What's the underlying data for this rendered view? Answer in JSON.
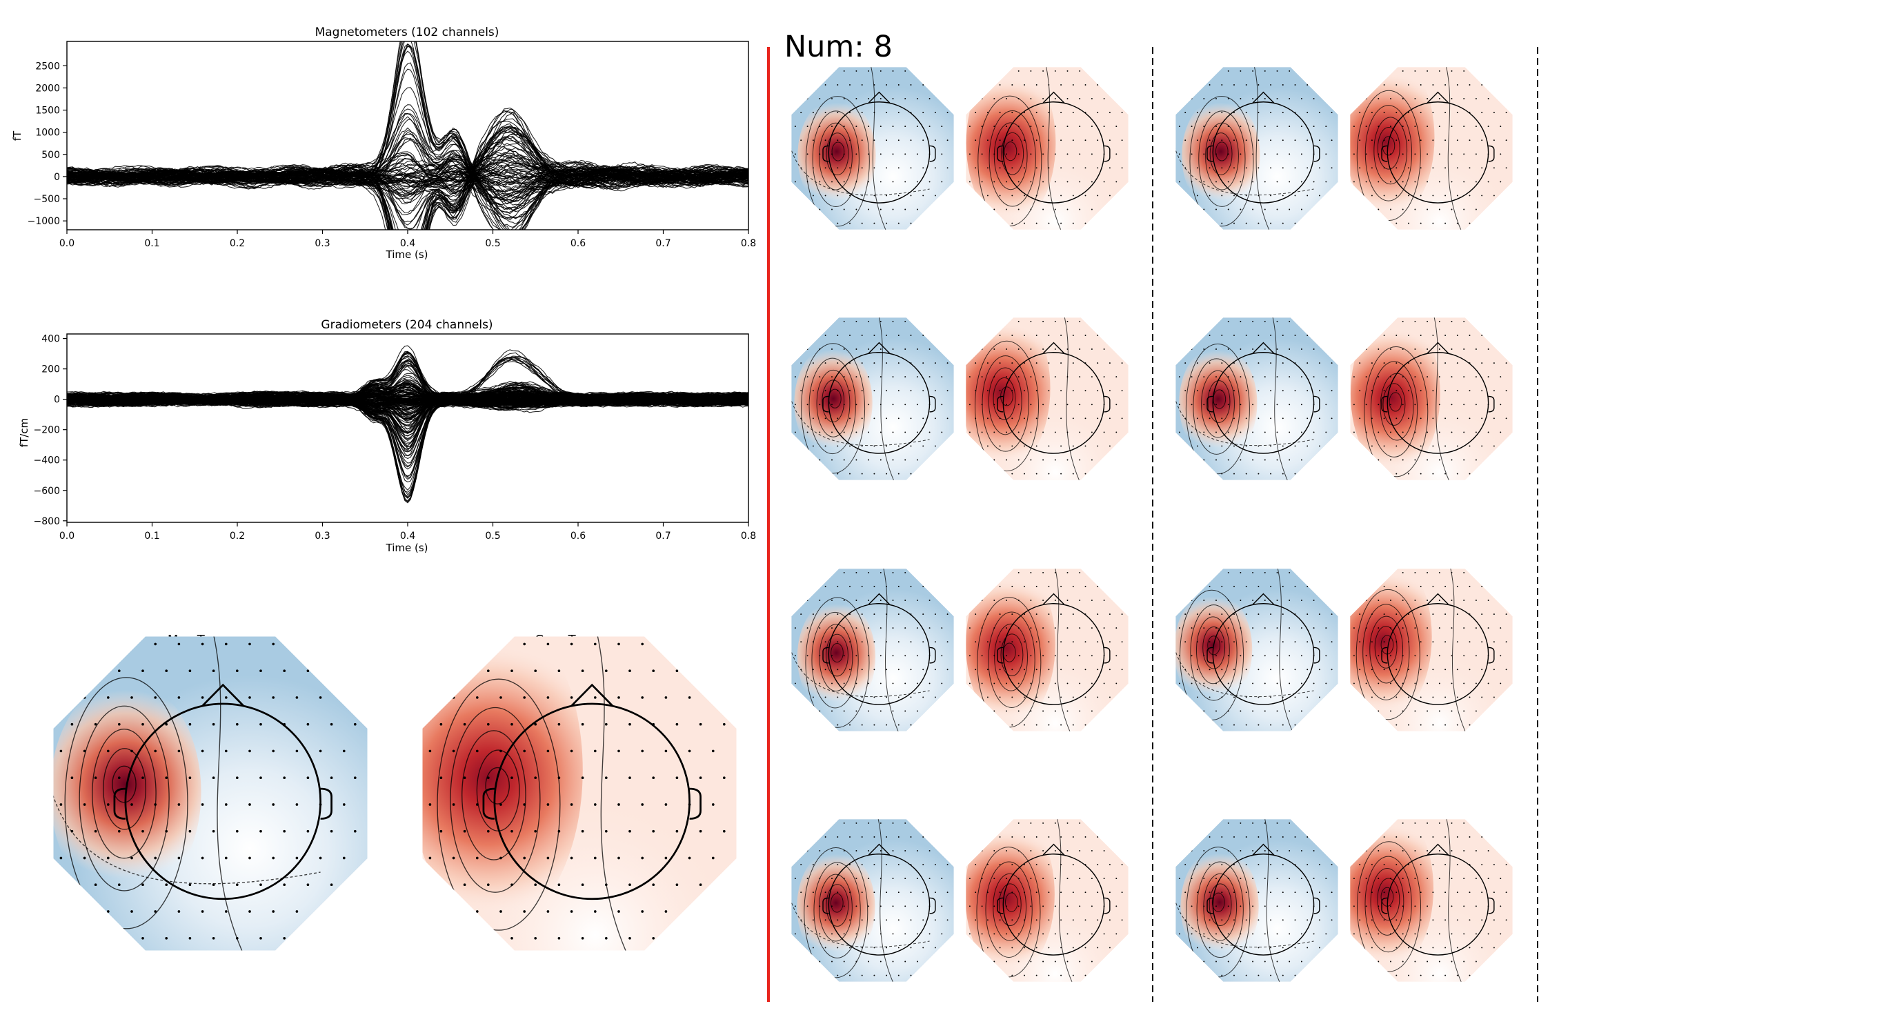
{
  "header": {
    "num_label": "Num: 8"
  },
  "colors": {
    "accent_line": "#e8241c",
    "trace": "#000000",
    "divider": "#000000",
    "topo_red": "#67001f",
    "topo_blue": "#2166ac"
  },
  "chart_data": [
    {
      "type": "line",
      "title": "Magnetometers (102 channels)",
      "xlabel": "Time (s)",
      "ylabel": "fT",
      "xlim": [
        0.0,
        0.8
      ],
      "ylim": [
        -1200,
        3050
      ],
      "x_ticks": [
        "0.0",
        "0.1",
        "0.2",
        "0.3",
        "0.4",
        "0.5",
        "0.6",
        "0.7",
        "0.8"
      ],
      "y_ticks": [
        "-1000",
        "-500",
        "0",
        "500",
        "1000",
        "1500",
        "2000",
        "2500"
      ],
      "series_count": 102,
      "peak": {
        "x": 0.4,
        "y": 2800
      },
      "trough": {
        "x": 0.52,
        "y": -1050
      }
    },
    {
      "type": "line",
      "title": "Gradiometers (204 channels)",
      "xlabel": "Time (s)",
      "ylabel": "fT/cm",
      "xlim": [
        0.0,
        0.8
      ],
      "ylim": [
        -810,
        430
      ],
      "x_ticks": [
        "0.0",
        "0.1",
        "0.2",
        "0.3",
        "0.4",
        "0.5",
        "0.6",
        "0.7",
        "0.8"
      ],
      "y_ticks": [
        "-800",
        "-600",
        "-400",
        "-200",
        "0",
        "200",
        "400"
      ],
      "series_count": 204,
      "peak": {
        "x": 0.4,
        "y": 380
      },
      "trough": {
        "x": 0.4,
        "y": -760
      }
    },
    {
      "type": "heatmap",
      "title": "Mag-Topomap",
      "variant": "mag"
    },
    {
      "type": "heatmap",
      "title": "Grag-Topomap",
      "variant": "grad"
    }
  ],
  "grid": {
    "rows": 4,
    "groups": 2,
    "maps_per_group": 2
  }
}
